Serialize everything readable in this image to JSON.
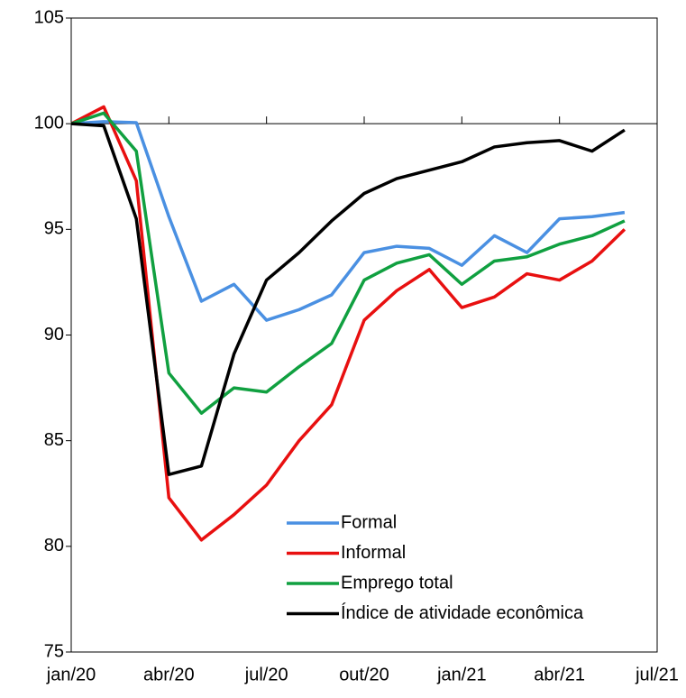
{
  "chart_data": {
    "type": "line",
    "categories": [
      "jan/20",
      null,
      null,
      "abr/20",
      null,
      null,
      "jul/20",
      null,
      null,
      "out/20",
      null,
      null,
      "jan/21",
      null,
      null,
      "abr/21",
      null,
      null,
      "jul/21"
    ],
    "series": [
      {
        "name": "Formal",
        "color": "#4a90e2",
        "values": [
          100,
          100.1,
          100.05,
          95.6,
          91.6,
          92.4,
          90.7,
          91.2,
          91.9,
          93.9,
          94.2,
          94.1,
          93.3,
          94.7,
          93.9,
          95.5,
          95.6,
          95.8,
          null
        ]
      },
      {
        "name": "Informal",
        "color": "#e81010",
        "values": [
          100,
          100.8,
          97.3,
          82.3,
          80.3,
          81.5,
          82.9,
          85.0,
          86.7,
          90.7,
          92.1,
          93.1,
          91.3,
          91.8,
          92.9,
          92.6,
          93.5,
          95.0,
          null
        ]
      },
      {
        "name": "Emprego total",
        "color": "#10a040",
        "values": [
          100,
          100.5,
          98.7,
          88.2,
          86.3,
          87.5,
          87.3,
          88.5,
          89.6,
          92.6,
          93.4,
          93.8,
          92.4,
          93.5,
          93.7,
          94.3,
          94.7,
          95.4,
          null
        ]
      },
      {
        "name": "Índice de atividade econômica",
        "color": "#000000",
        "values": [
          100,
          99.9,
          95.5,
          83.4,
          83.8,
          89.1,
          92.6,
          93.9,
          95.4,
          96.7,
          97.4,
          97.8,
          98.2,
          98.9,
          99.1,
          99.2,
          98.7,
          99.7,
          null
        ]
      }
    ],
    "ylim": [
      75,
      105
    ],
    "yticks": [
      75,
      80,
      85,
      90,
      95,
      100,
      105
    ],
    "baseline": 100
  }
}
